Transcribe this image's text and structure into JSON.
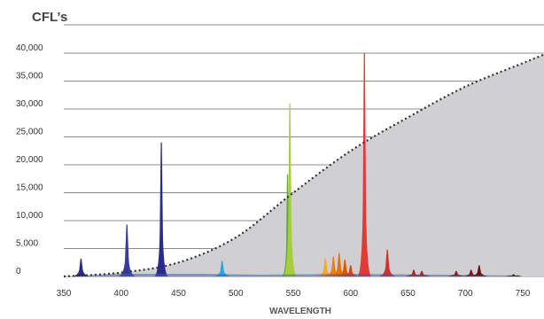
{
  "chart_data": {
    "type": "area",
    "title": "CFL’s",
    "xlabel": "WAVELENGTH",
    "ylabel": "",
    "xlim": [
      350,
      750
    ],
    "ylim": [
      0,
      40000
    ],
    "x_ticks": [
      "350",
      "400",
      "450",
      "500",
      "550",
      "600",
      "650",
      "700",
      "750"
    ],
    "y_ticks": [
      "0",
      "5,000",
      "10,000",
      "15,000",
      "20,000",
      "25,000",
      "30,000",
      "35,000",
      "40,000"
    ],
    "grid": "horizontal",
    "reference_curve": {
      "style": "dotted",
      "points": [
        [
          350,
          0
        ],
        [
          400,
          700
        ],
        [
          450,
          2500
        ],
        [
          500,
          7000
        ],
        [
          550,
          15000
        ],
        [
          600,
          22500
        ],
        [
          650,
          28500
        ],
        [
          700,
          34000
        ],
        [
          750,
          38200
        ]
      ]
    },
    "peaks": [
      {
        "x": 365,
        "y": 3200,
        "color": "#2a2a7a"
      },
      {
        "x": 405,
        "y": 9300,
        "color": "#3a3a9c"
      },
      {
        "x": 435,
        "y": 24000,
        "color": "#2b2b8f"
      },
      {
        "x": 488,
        "y": 2800,
        "color": "#27a9e1"
      },
      {
        "x": 545,
        "y": 18300,
        "color": "#5aa840"
      },
      {
        "x": 547,
        "y": 31000,
        "color": "#a6ce39"
      },
      {
        "x": 578,
        "y": 3300,
        "color": "#f9a825"
      },
      {
        "x": 585,
        "y": 3600,
        "color": "#f57c00"
      },
      {
        "x": 590,
        "y": 4200,
        "color": "#ef6c00"
      },
      {
        "x": 595,
        "y": 3000,
        "color": "#e65100"
      },
      {
        "x": 600,
        "y": 2000,
        "color": "#d84315"
      },
      {
        "x": 612,
        "y": 40000,
        "color": "#e53935"
      },
      {
        "x": 632,
        "y": 4800,
        "color": "#d32f2f"
      },
      {
        "x": 655,
        "y": 1200,
        "color": "#b71c1c"
      },
      {
        "x": 662,
        "y": 1000,
        "color": "#b71c1c"
      },
      {
        "x": 692,
        "y": 1000,
        "color": "#8e1a1a"
      },
      {
        "x": 705,
        "y": 1200,
        "color": "#7b1515"
      },
      {
        "x": 712,
        "y": 2000,
        "color": "#6d1010"
      },
      {
        "x": 742,
        "y": 400,
        "color": "#5a0d0d"
      }
    ],
    "colors": {
      "reference_fill": "#d0d0d2",
      "grid": "#8c8c8c",
      "dotted_line": "#333333"
    }
  }
}
